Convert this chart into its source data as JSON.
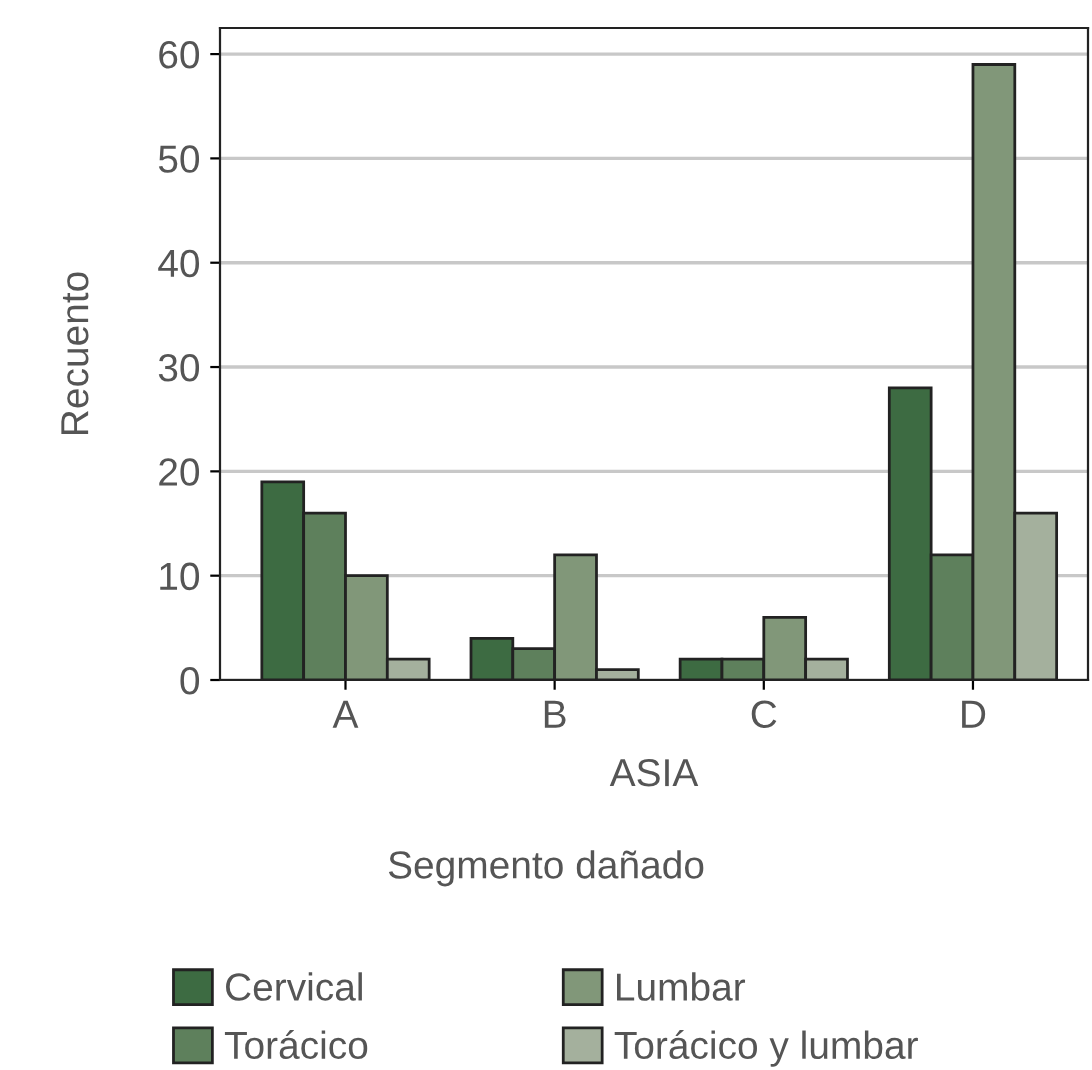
{
  "chart_data": {
    "type": "bar",
    "xlabel": "ASIA",
    "ylabel": "Recuento",
    "legend_title": "Segmento dañado",
    "categories": [
      "A",
      "B",
      "C",
      "D"
    ],
    "series": [
      {
        "name": "Cervical",
        "color": "#3d6b42",
        "values": [
          19,
          4,
          2,
          28
        ]
      },
      {
        "name": "Torácico",
        "color": "#5e805c",
        "values": [
          16,
          3,
          2,
          12
        ]
      },
      {
        "name": "Lumbar",
        "color": "#819779",
        "values": [
          10,
          12,
          6,
          59
        ]
      },
      {
        "name": "Torácico y lumbar",
        "color": "#a4b09d",
        "values": [
          2,
          1,
          2,
          16
        ]
      }
    ],
    "ylim": [
      0,
      62.5
    ],
    "yticks": [
      0,
      10,
      20,
      30,
      40,
      50,
      60
    ],
    "grid": "y",
    "legend": "bottom"
  }
}
